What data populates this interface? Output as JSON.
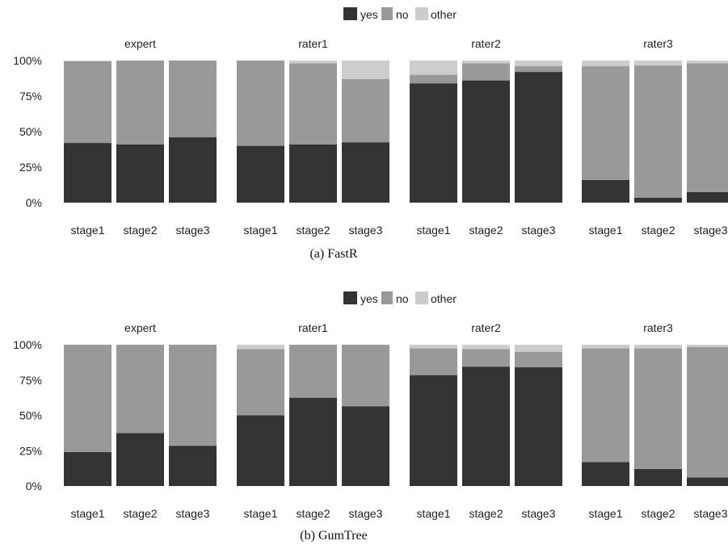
{
  "colors": {
    "yes": "#333333",
    "no": "#999999",
    "other": "#cccccc"
  },
  "chart_data": [
    {
      "type": "bar",
      "stacked": true,
      "caption": "(a)  FastR",
      "legend": [
        "yes",
        "no",
        "other"
      ],
      "legend_position": "top-center",
      "ylim": [
        0,
        100
      ],
      "yticks": [
        "0%",
        "25%",
        "50%",
        "75%",
        "100%"
      ],
      "panels": [
        {
          "title": "expert",
          "categories": [
            "stage1",
            "stage2",
            "stage3"
          ],
          "series": [
            {
              "name": "yes",
              "values": [
                42,
                41,
                46
              ]
            },
            {
              "name": "no",
              "values": [
                57.5,
                59,
                54
              ]
            },
            {
              "name": "other",
              "values": [
                0.5,
                0,
                0
              ]
            }
          ]
        },
        {
          "title": "rater1",
          "categories": [
            "stage1",
            "stage2",
            "stage3"
          ],
          "series": [
            {
              "name": "yes",
              "values": [
                40,
                41,
                42.5
              ]
            },
            {
              "name": "no",
              "values": [
                60,
                57,
                44.5
              ]
            },
            {
              "name": "other",
              "values": [
                0,
                2,
                13
              ]
            }
          ]
        },
        {
          "title": "rater2",
          "categories": [
            "stage1",
            "stage2",
            "stage3"
          ],
          "series": [
            {
              "name": "yes",
              "values": [
                84,
                86,
                92
              ]
            },
            {
              "name": "no",
              "values": [
                6,
                12,
                4
              ]
            },
            {
              "name": "other",
              "values": [
                10,
                2,
                4
              ]
            }
          ]
        },
        {
          "title": "rater3",
          "categories": [
            "stage1",
            "stage2",
            "stage3"
          ],
          "series": [
            {
              "name": "yes",
              "values": [
                16,
                3.5,
                7.5
              ]
            },
            {
              "name": "no",
              "values": [
                80,
                93,
                90.5
              ]
            },
            {
              "name": "other",
              "values": [
                4,
                3.5,
                2
              ]
            }
          ]
        }
      ]
    },
    {
      "type": "bar",
      "stacked": true,
      "caption": "(b)  GumTree",
      "legend": [
        "yes",
        "no",
        "other"
      ],
      "legend_position": "top-center",
      "ylim": [
        0,
        100
      ],
      "yticks": [
        "0%",
        "25%",
        "50%",
        "75%",
        "100%"
      ],
      "panels": [
        {
          "title": "expert",
          "categories": [
            "stage1",
            "stage2",
            "stage3"
          ],
          "series": [
            {
              "name": "yes",
              "values": [
                24,
                37.5,
                28.5
              ]
            },
            {
              "name": "no",
              "values": [
                76,
                62.5,
                71.5
              ]
            },
            {
              "name": "other",
              "values": [
                0,
                0,
                0
              ]
            }
          ]
        },
        {
          "title": "rater1",
          "categories": [
            "stage1",
            "stage2",
            "stage3"
          ],
          "series": [
            {
              "name": "yes",
              "values": [
                50,
                62.5,
                56.5
              ]
            },
            {
              "name": "no",
              "values": [
                47,
                37.5,
                43.5
              ]
            },
            {
              "name": "other",
              "values": [
                3,
                0,
                0
              ]
            }
          ]
        },
        {
          "title": "rater2",
          "categories": [
            "stage1",
            "stage2",
            "stage3"
          ],
          "series": [
            {
              "name": "yes",
              "values": [
                78.5,
                84.5,
                84
              ]
            },
            {
              "name": "no",
              "values": [
                19,
                12.5,
                11
              ]
            },
            {
              "name": "other",
              "values": [
                2.5,
                3,
                5
              ]
            }
          ]
        },
        {
          "title": "rater3",
          "categories": [
            "stage1",
            "stage2",
            "stage3"
          ],
          "series": [
            {
              "name": "yes",
              "values": [
                17,
                12,
                6
              ]
            },
            {
              "name": "no",
              "values": [
                80.5,
                85.5,
                92.5
              ]
            },
            {
              "name": "other",
              "values": [
                2.5,
                2.5,
                1.5
              ]
            }
          ]
        }
      ]
    }
  ]
}
